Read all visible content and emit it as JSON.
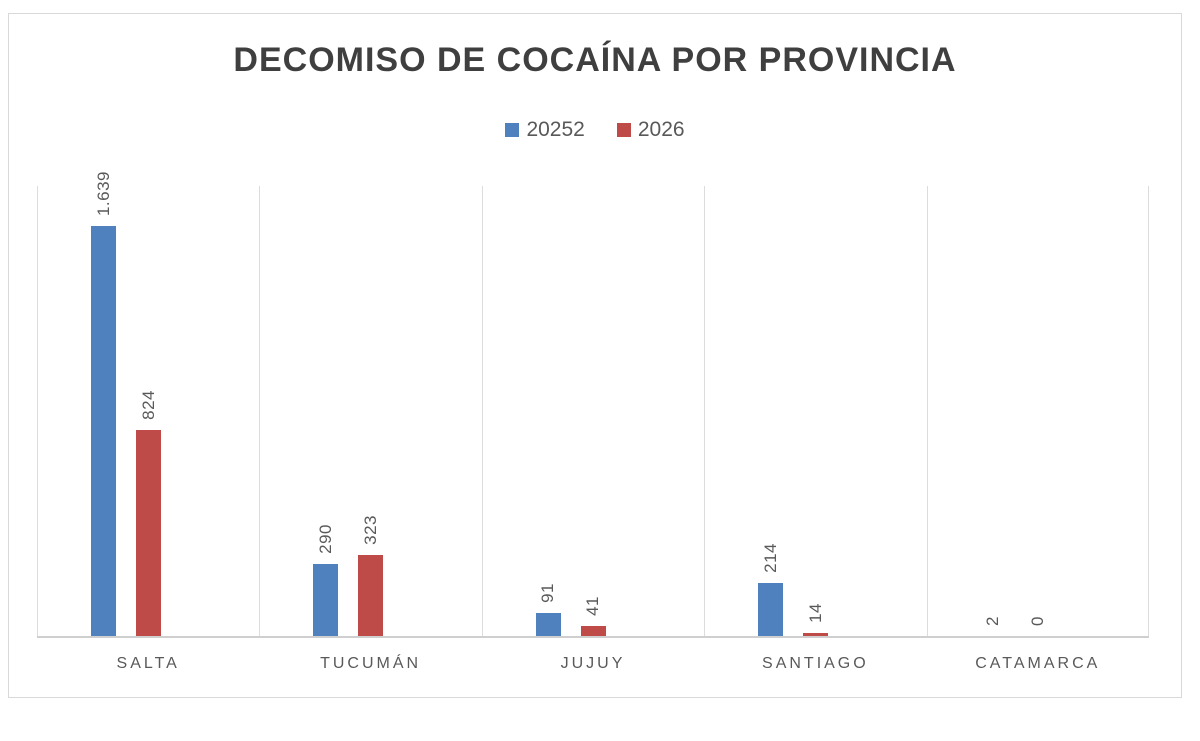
{
  "chart": {
    "title": "DECOMISO DE COCAÍNA POR PROVINCIA"
  },
  "chart_data": {
    "type": "bar",
    "title": "DECOMISO DE COCAÍNA POR PROVINCIA",
    "categories": [
      "SALTA",
      "TUCUMÁN",
      "JUJUY",
      "SANTIAGO",
      "CATAMARCA"
    ],
    "series": [
      {
        "name": "20252",
        "color": "#4E81BD",
        "values": [
          1639,
          290,
          91,
          214,
          2
        ],
        "labels": [
          "1.639",
          "290",
          "91",
          "214",
          "2"
        ]
      },
      {
        "name": "2026",
        "color": "#BE4B48",
        "values": [
          824,
          323,
          41,
          14,
          0
        ],
        "labels": [
          "824",
          "323",
          "41",
          "14",
          "0"
        ]
      }
    ],
    "xlabel": "",
    "ylabel": "",
    "ylim": [
      0,
      1800
    ],
    "grid": "vertical category separators only",
    "legend_position": "top-center",
    "data_labels": "rotated 90°, above bars",
    "colors": {
      "title_text": "#3f3f3f",
      "label_text": "#595959",
      "gridline": "#dcdcdc",
      "axis_line": "#cfcfcf",
      "frame_border": "#d9d9d9",
      "background": "#ffffff"
    }
  }
}
